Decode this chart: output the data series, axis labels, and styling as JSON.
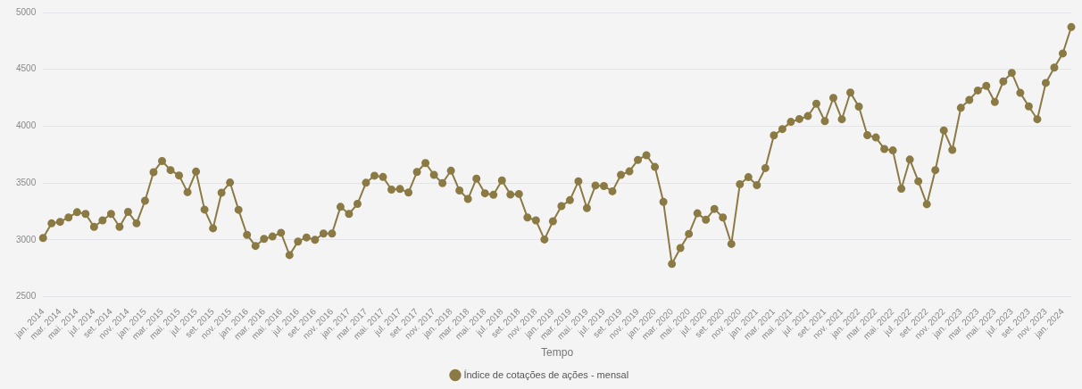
{
  "chart_data": {
    "type": "line",
    "xlabel": "Tempo",
    "categories": [
      "jan. 2014",
      null,
      "mar. 2014",
      null,
      "mai. 2014",
      null,
      "jul. 2014",
      null,
      "set. 2014",
      null,
      "nov. 2014",
      null,
      "jan. 2015",
      null,
      "mar. 2015",
      null,
      "mai. 2015",
      null,
      "jul. 2015",
      null,
      "set. 2015",
      null,
      "nov. 2015",
      null,
      "jan. 2016",
      null,
      "mar. 2016",
      null,
      "mai. 2016",
      null,
      "jul. 2016",
      null,
      "set. 2016",
      null,
      "nov. 2016",
      null,
      "jan. 2017",
      null,
      "mar. 2017",
      null,
      "mai. 2017",
      null,
      "jul. 2017",
      null,
      "set. 2017",
      null,
      "nov. 2017",
      null,
      "jan. 2018",
      null,
      "mar. 2018",
      null,
      "mai. 2018",
      null,
      "jul. 2018",
      null,
      "set. 2018",
      null,
      "nov. 2018",
      null,
      "jan. 2019",
      null,
      "mar. 2019",
      null,
      "mai. 2019",
      null,
      "jul. 2019",
      null,
      "set. 2019",
      null,
      "nov. 2019",
      null,
      "jan. 2020",
      null,
      "mar. 2020",
      null,
      "mai. 2020",
      null,
      "jul. 2020",
      null,
      "set. 2020",
      null,
      "nov. 2020",
      null,
      "jan. 2021",
      null,
      "mar. 2021",
      null,
      "mai. 2021",
      null,
      "jul. 2021",
      null,
      "set. 2021",
      null,
      "nov. 2021",
      null,
      "jan. 2022",
      null,
      "mar. 2022",
      null,
      "mai. 2022",
      null,
      "jul. 2022",
      null,
      "set. 2022",
      null,
      "nov. 2022",
      null,
      "jan. 2023",
      null,
      "mar. 2023",
      null,
      "mai. 2023",
      null,
      "jul. 2023",
      null,
      "set. 2023",
      null,
      "nov. 2023",
      null,
      "jan. 2024",
      null
    ],
    "series": [
      {
        "name": "Índice de cotações de ações - mensal",
        "color": "#8b7a44",
        "values": [
          3017,
          3146,
          3159,
          3198,
          3244,
          3229,
          3115,
          3172,
          3229,
          3115,
          3247,
          3146,
          3345,
          3596,
          3694,
          3614,
          3567,
          3420,
          3601,
          3267,
          3102,
          3415,
          3505,
          3265,
          3045,
          2947,
          3009,
          3030,
          3063,
          2867,
          2986,
          3022,
          3001,
          3056,
          3056,
          3291,
          3229,
          3317,
          3503,
          3565,
          3554,
          3443,
          3448,
          3417,
          3598,
          3676,
          3572,
          3500,
          3609,
          3435,
          3360,
          3539,
          3410,
          3397,
          3523,
          3399,
          3404,
          3198,
          3172,
          3004,
          3164,
          3298,
          3350,
          3516,
          3280,
          3479,
          3474,
          3428,
          3572,
          3603,
          3704,
          3745,
          3642,
          3335,
          2789,
          2929,
          3053,
          3234,
          3177,
          3273,
          3198,
          2965,
          3490,
          3552,
          3482,
          3632,
          3919,
          3975,
          4038,
          4063,
          4089,
          4198,
          4045,
          4249,
          4061,
          4296,
          4172,
          3921,
          3901,
          3800,
          3787,
          3451,
          3707,
          3516,
          3314,
          3614,
          3963,
          3792,
          4162,
          4231,
          4314,
          4355,
          4213,
          4394,
          4469,
          4293,
          4174,
          4061,
          4381,
          4516,
          4640,
          4872
        ]
      }
    ],
    "ylim": [
      2500,
      5000
    ],
    "yticks": [
      2500,
      3000,
      3500,
      4000,
      4500,
      5000
    ],
    "grid": "y",
    "legend": "bottom",
    "marker": "circle",
    "line_style": "solid"
  }
}
